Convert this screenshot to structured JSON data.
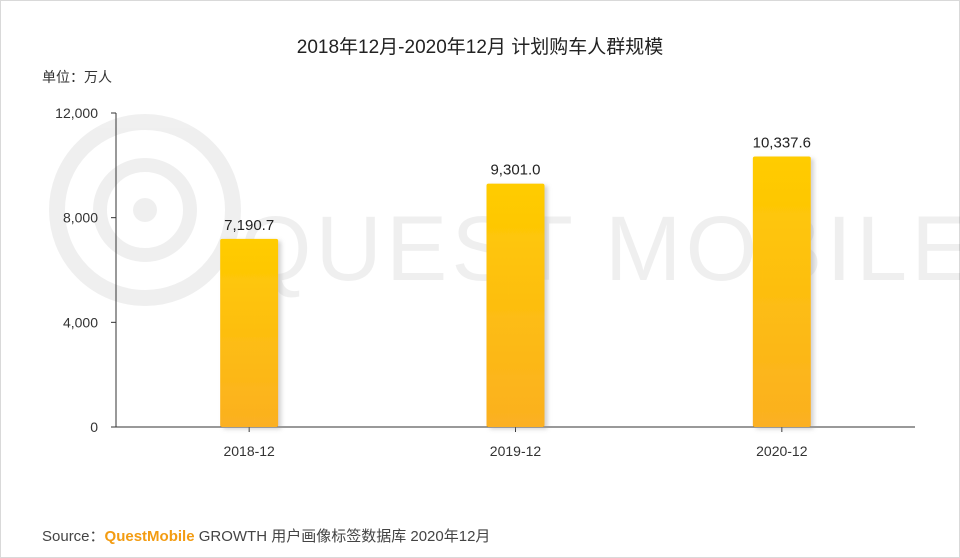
{
  "chart_data": {
    "type": "bar",
    "title": "2018年12月-2020年12月 计划购车人群规模",
    "unit_label": "单位：万人",
    "categories": [
      "2018-12",
      "2019-12",
      "2020-12"
    ],
    "values": [
      7190.7,
      9301.0,
      10337.6
    ],
    "value_labels": [
      "7,190.7",
      "9,301.0",
      "10,337.6"
    ],
    "ylim": [
      0,
      12000
    ],
    "yticks": [
      0,
      4000,
      8000,
      12000
    ],
    "ytick_labels": [
      "0",
      "4,000",
      "8,000",
      "12,000"
    ],
    "grid": false,
    "colors": {
      "bar_top": "#ffcc00",
      "bar_bottom": "#fbb021",
      "axis": "#333333"
    }
  },
  "watermark": "QUEST MOBILE",
  "source": {
    "prefix": "Source：",
    "brand": "QuestMobile",
    "suffix": "GROWTH 用户画像标签数据库 2020年12月"
  }
}
